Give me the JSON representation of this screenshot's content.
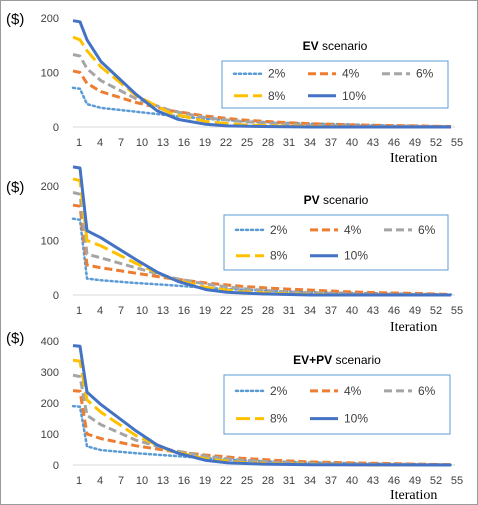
{
  "chart_data": [
    {
      "type": "line",
      "title_bold": "EV",
      "title_rest": " scenario",
      "ylabel": "($)",
      "xlabel": "Iteration",
      "ylim": [
        0,
        200
      ],
      "yticks": [
        0,
        100,
        200
      ],
      "xticks": [
        1,
        4,
        7,
        10,
        13,
        16,
        19,
        22,
        25,
        28,
        31,
        34,
        37,
        40,
        43,
        46,
        49,
        52,
        55
      ],
      "legend_position": "right",
      "series": [
        {
          "name": "2%",
          "color": "#5b9bd5",
          "dash": "dot",
          "points": [
            [
              1,
              72
            ],
            [
              2,
              70
            ],
            [
              3,
              42
            ],
            [
              5,
              35
            ],
            [
              10,
              28
            ],
            [
              15,
              21
            ],
            [
              20,
              15
            ],
            [
              25,
              11
            ],
            [
              30,
              8
            ],
            [
              35,
              6
            ],
            [
              40,
              5
            ],
            [
              45,
              3
            ],
            [
              50,
              2
            ],
            [
              55,
              1
            ]
          ]
        },
        {
          "name": "4%",
          "color": "#ed7d31",
          "dash": "dash",
          "points": [
            [
              1,
              103
            ],
            [
              2,
              100
            ],
            [
              3,
              80
            ],
            [
              5,
              65
            ],
            [
              10,
              45
            ],
            [
              15,
              30
            ],
            [
              20,
              20
            ],
            [
              25,
              13
            ],
            [
              30,
              9
            ],
            [
              35,
              6
            ],
            [
              40,
              4
            ],
            [
              45,
              3
            ],
            [
              50,
              2
            ],
            [
              55,
              1
            ]
          ]
        },
        {
          "name": "6%",
          "color": "#a5a5a5",
          "dash": "dash",
          "points": [
            [
              1,
              133
            ],
            [
              2,
              130
            ],
            [
              3,
              107
            ],
            [
              5,
              85
            ],
            [
              10,
              52
            ],
            [
              15,
              30
            ],
            [
              20,
              17
            ],
            [
              25,
              10
            ],
            [
              30,
              6
            ],
            [
              35,
              3
            ],
            [
              40,
              2
            ],
            [
              45,
              1
            ],
            [
              50,
              1
            ],
            [
              55,
              0
            ]
          ]
        },
        {
          "name": "8%",
          "color": "#ffc000",
          "dash": "longdash",
          "points": [
            [
              1,
              165
            ],
            [
              2,
              160
            ],
            [
              3,
              140
            ],
            [
              5,
              110
            ],
            [
              10,
              58
            ],
            [
              15,
              25
            ],
            [
              20,
              10
            ],
            [
              25,
              4
            ],
            [
              30,
              2
            ],
            [
              35,
              1
            ],
            [
              40,
              0
            ],
            [
              45,
              0
            ],
            [
              50,
              0
            ],
            [
              55,
              0
            ]
          ]
        },
        {
          "name": "10%",
          "color": "#4472c4",
          "dash": "solid",
          "points": [
            [
              1,
              195
            ],
            [
              2,
              193
            ],
            [
              3,
              160
            ],
            [
              5,
              120
            ],
            [
              10,
              60
            ],
            [
              13,
              30
            ],
            [
              16,
              14
            ],
            [
              20,
              5
            ],
            [
              23,
              2
            ],
            [
              28,
              1
            ],
            [
              35,
              0
            ],
            [
              55,
              0
            ]
          ]
        }
      ]
    },
    {
      "type": "line",
      "title_bold": "PV",
      "title_rest": " scenario",
      "ylabel": "($)",
      "xlabel": "Iteration",
      "ylim": [
        0,
        200
      ],
      "yticks": [
        0,
        100,
        200
      ],
      "xticks": [
        1,
        4,
        7,
        10,
        13,
        16,
        19,
        22,
        25,
        28,
        31,
        34,
        37,
        40,
        43,
        46,
        49,
        52,
        55
      ],
      "legend_position": "right",
      "series": [
        {
          "name": "2%",
          "color": "#5b9bd5",
          "dash": "dot",
          "points": [
            [
              1,
              140
            ],
            [
              2,
              138
            ],
            [
              3,
              30
            ],
            [
              5,
              27
            ],
            [
              10,
              22
            ],
            [
              15,
              18
            ],
            [
              20,
              13
            ],
            [
              25,
              10
            ],
            [
              30,
              7
            ],
            [
              35,
              5
            ],
            [
              40,
              4
            ],
            [
              45,
              3
            ],
            [
              50,
              2
            ],
            [
              55,
              1
            ]
          ]
        },
        {
          "name": "4%",
          "color": "#ed7d31",
          "dash": "dash",
          "points": [
            [
              1,
              165
            ],
            [
              2,
              163
            ],
            [
              3,
              55
            ],
            [
              5,
              50
            ],
            [
              10,
              40
            ],
            [
              15,
              30
            ],
            [
              20,
              22
            ],
            [
              25,
              16
            ],
            [
              30,
              12
            ],
            [
              35,
              9
            ],
            [
              40,
              6
            ],
            [
              45,
              4
            ],
            [
              50,
              3
            ],
            [
              55,
              1
            ]
          ]
        },
        {
          "name": "6%",
          "color": "#a5a5a5",
          "dash": "dash",
          "points": [
            [
              1,
              188
            ],
            [
              2,
              185
            ],
            [
              3,
              75
            ],
            [
              5,
              68
            ],
            [
              10,
              50
            ],
            [
              15,
              32
            ],
            [
              20,
              20
            ],
            [
              25,
              12
            ],
            [
              30,
              7
            ],
            [
              35,
              4
            ],
            [
              40,
              2
            ],
            [
              45,
              1
            ],
            [
              50,
              1
            ],
            [
              55,
              0
            ]
          ]
        },
        {
          "name": "8%",
          "color": "#ffc000",
          "dash": "longdash",
          "points": [
            [
              1,
              213
            ],
            [
              2,
              210
            ],
            [
              3,
              100
            ],
            [
              5,
              90
            ],
            [
              10,
              58
            ],
            [
              15,
              30
            ],
            [
              20,
              14
            ],
            [
              25,
              6
            ],
            [
              30,
              3
            ],
            [
              35,
              1
            ],
            [
              40,
              0
            ],
            [
              45,
              0
            ],
            [
              50,
              0
            ],
            [
              55,
              0
            ]
          ]
        },
        {
          "name": "10%",
          "color": "#4472c4",
          "dash": "solid",
          "points": [
            [
              1,
              235
            ],
            [
              2,
              233
            ],
            [
              3,
              118
            ],
            [
              5,
              105
            ],
            [
              10,
              65
            ],
            [
              13,
              42
            ],
            [
              16,
              25
            ],
            [
              20,
              10
            ],
            [
              23,
              5
            ],
            [
              28,
              2
            ],
            [
              35,
              0
            ],
            [
              55,
              0
            ]
          ]
        }
      ]
    },
    {
      "type": "line",
      "title_bold": "EV+PV",
      "title_rest": " scenario",
      "ylabel": "($)",
      "xlabel": "Iteration",
      "ylim": [
        0,
        400
      ],
      "yticks": [
        0,
        100,
        200,
        300,
        400
      ],
      "xticks": [
        1,
        4,
        7,
        10,
        13,
        16,
        19,
        22,
        25,
        28,
        31,
        34,
        37,
        40,
        43,
        46,
        49,
        52,
        55
      ],
      "legend_position": "right",
      "series": [
        {
          "name": "2%",
          "color": "#5b9bd5",
          "dash": "dot",
          "points": [
            [
              1,
              190
            ],
            [
              2,
              188
            ],
            [
              3,
              60
            ],
            [
              5,
              48
            ],
            [
              10,
              38
            ],
            [
              15,
              30
            ],
            [
              20,
              22
            ],
            [
              25,
              15
            ],
            [
              30,
              11
            ],
            [
              35,
              8
            ],
            [
              40,
              6
            ],
            [
              45,
              4
            ],
            [
              50,
              3
            ],
            [
              55,
              1
            ]
          ]
        },
        {
          "name": "4%",
          "color": "#ed7d31",
          "dash": "dash",
          "points": [
            [
              1,
              240
            ],
            [
              2,
              238
            ],
            [
              3,
              100
            ],
            [
              5,
              85
            ],
            [
              10,
              62
            ],
            [
              15,
              45
            ],
            [
              20,
              32
            ],
            [
              25,
              22
            ],
            [
              30,
              15
            ],
            [
              35,
              10
            ],
            [
              40,
              7
            ],
            [
              45,
              5
            ],
            [
              50,
              3
            ],
            [
              55,
              1
            ]
          ]
        },
        {
          "name": "6%",
          "color": "#a5a5a5",
          "dash": "dash",
          "points": [
            [
              1,
              290
            ],
            [
              2,
              285
            ],
            [
              3,
              160
            ],
            [
              5,
              130
            ],
            [
              10,
              80
            ],
            [
              15,
              48
            ],
            [
              20,
              28
            ],
            [
              25,
              16
            ],
            [
              30,
              9
            ],
            [
              35,
              5
            ],
            [
              40,
              3
            ],
            [
              45,
              2
            ],
            [
              50,
              1
            ],
            [
              55,
              0
            ]
          ]
        },
        {
          "name": "8%",
          "color": "#ffc000",
          "dash": "longdash",
          "points": [
            [
              1,
              338
            ],
            [
              2,
              335
            ],
            [
              3,
              210
            ],
            [
              5,
              170
            ],
            [
              10,
              95
            ],
            [
              15,
              45
            ],
            [
              20,
              20
            ],
            [
              25,
              8
            ],
            [
              30,
              4
            ],
            [
              35,
              2
            ],
            [
              40,
              1
            ],
            [
              45,
              0
            ],
            [
              50,
              0
            ],
            [
              55,
              0
            ]
          ]
        },
        {
          "name": "10%",
          "color": "#4472c4",
          "dash": "solid",
          "points": [
            [
              1,
              385
            ],
            [
              2,
              383
            ],
            [
              3,
              235
            ],
            [
              5,
              195
            ],
            [
              10,
              110
            ],
            [
              13,
              65
            ],
            [
              16,
              38
            ],
            [
              20,
              15
            ],
            [
              23,
              7
            ],
            [
              28,
              3
            ],
            [
              35,
              1
            ],
            [
              55,
              0
            ]
          ]
        }
      ]
    }
  ]
}
